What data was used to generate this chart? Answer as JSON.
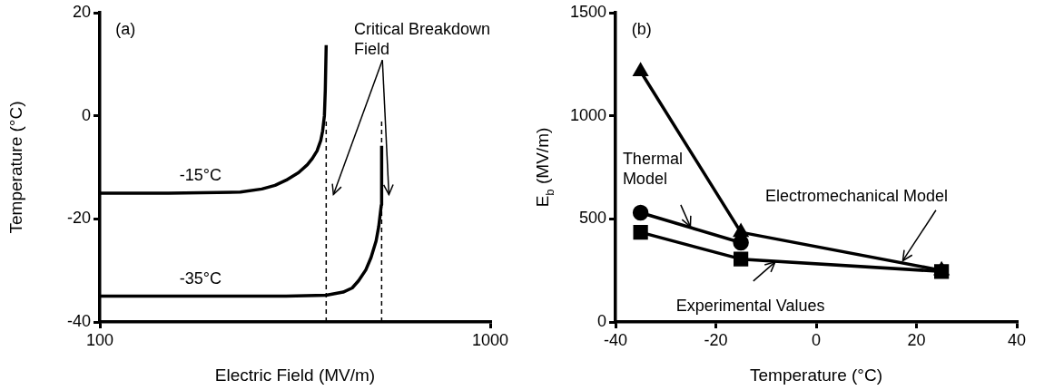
{
  "chart_data": [
    {
      "type": "line",
      "xlabel": "Electric Field (MV/m)",
      "ylabel": "Temperature (°C)",
      "log": "x",
      "marker": "none",
      "line_style": "solid",
      "xlim": [
        100,
        1000
      ],
      "xticks": [
        100,
        1000
      ],
      "ylim": [
        -40,
        20
      ],
      "yticks": [
        20,
        0,
        -20,
        -40
      ],
      "series": [
        {
          "color": "#000000",
          "x": [
            100,
            150,
            200,
            229,
            260,
            281,
            300,
            323,
            340,
            350,
            360,
            368,
            372,
            376,
            378,
            380
          ],
          "values": [
            -15,
            -15,
            -14.9,
            -14.8,
            -14.2,
            -13.5,
            -12.5,
            -11,
            -9.5,
            -8.3,
            -6.8,
            -4.8,
            -3,
            0,
            5,
            13.7
          ]
        },
        {
          "color": "#000000",
          "x": [
            100,
            200,
            300,
            380,
            420,
            443,
            460,
            480,
            495,
            510,
            518,
            526,
            527
          ],
          "values": [
            -35,
            -35,
            -35,
            -34.8,
            -34.2,
            -33.4,
            -32,
            -29.9,
            -27.5,
            -24.3,
            -21.5,
            -17.3,
            -5.8
          ]
        }
      ],
      "ref_lines": [
        {
          "axis": "x",
          "value": 380,
          "line_style": "dashed",
          "color": "#000000"
        },
        {
          "axis": "x",
          "value": 527,
          "line_style": "dashed",
          "color": "#000000"
        }
      ],
      "annotations": [
        "(a)",
        "Critical Breakdown Field",
        {
          "text": "-15°C",
          "x": 160,
          "y": -15
        },
        {
          "text": "-35°C",
          "x": 160,
          "y": -35
        }
      ]
    },
    {
      "type": "line",
      "xlabel": "Temperature (°C)",
      "ylabel": "E$_{b}$ (MV/m)",
      "line_style": "solid",
      "xlim": [
        -40,
        40
      ],
      "xticks": [
        -40,
        -20,
        0,
        20,
        40
      ],
      "ylim": [
        0,
        1500
      ],
      "yticks": [
        0,
        500,
        1000,
        1500
      ],
      "series": [
        {
          "color": "#000000",
          "marker": "triangle",
          "x": [
            -35,
            -15,
            25
          ],
          "values": [
            1215,
            435,
            250
          ]
        },
        {
          "color": "#000000",
          "marker": "circle",
          "x": [
            -35,
            -15
          ],
          "values": [
            530,
            385
          ]
        },
        {
          "color": "#000000",
          "marker": "square",
          "x": [
            -35,
            -15,
            25
          ],
          "values": [
            435,
            305,
            245
          ]
        }
      ],
      "annotations": [
        "(b)",
        {
          "text": "Thermal Model",
          "x": -25,
          "y": 458
        },
        {
          "text": "Electromechanical Model",
          "x": 17,
          "y": 287
        },
        {
          "text": "Experimental Values",
          "x": -8,
          "y": 295
        }
      ]
    }
  ]
}
